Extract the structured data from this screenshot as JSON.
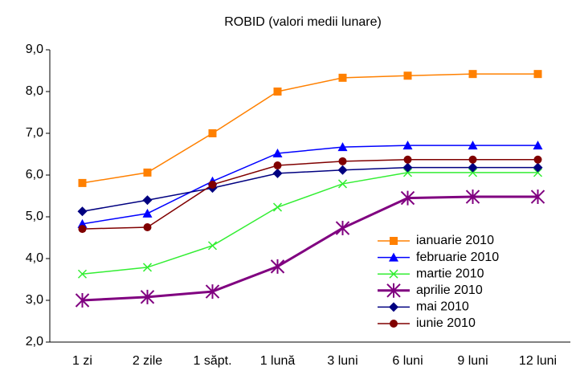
{
  "chart_data": {
    "type": "line",
    "title": "ROBID (valori medii lunare)",
    "categories": [
      "1 zi",
      "2 zile",
      "1 săpt.",
      "1 lună",
      "3 luni",
      "6 luni",
      "9 luni",
      "12 luni"
    ],
    "ylim": [
      2,
      9
    ],
    "yticks": [
      {
        "value": 2,
        "label": "2,0"
      },
      {
        "value": 3,
        "label": "3,0"
      },
      {
        "value": 4,
        "label": "4,0"
      },
      {
        "value": 5,
        "label": "5,0"
      },
      {
        "value": 6,
        "label": "6,0"
      },
      {
        "value": 7,
        "label": "7,0"
      },
      {
        "value": 8,
        "label": "8,0"
      },
      {
        "value": 9,
        "label": "9,0"
      }
    ],
    "grid": false,
    "legend": "lower right",
    "series": [
      {
        "name": "ianuarie 2010",
        "color": "#ff8000",
        "marker": "square",
        "values": [
          5.81,
          6.06,
          7.0,
          8.0,
          8.33,
          8.38,
          8.42,
          8.42
        ]
      },
      {
        "name": "februarie 2010",
        "color": "#0000ff",
        "marker": "triangle",
        "values": [
          4.83,
          5.08,
          5.85,
          6.52,
          6.67,
          6.71,
          6.71,
          6.71
        ]
      },
      {
        "name": "martie 2010",
        "color": "#33ee33",
        "marker": "x",
        "values": [
          3.63,
          3.79,
          4.31,
          5.23,
          5.79,
          6.06,
          6.06,
          6.06
        ]
      },
      {
        "name": "aprilie 2010",
        "color": "#800080",
        "marker": "asterisk",
        "line_width": 3,
        "values": [
          3.0,
          3.08,
          3.21,
          3.81,
          4.73,
          5.45,
          5.48,
          5.48
        ]
      },
      {
        "name": "mai 2010",
        "color": "#000080",
        "marker": "diamond",
        "values": [
          5.13,
          5.4,
          5.69,
          6.04,
          6.12,
          6.18,
          6.18,
          6.18
        ]
      },
      {
        "name": "iunie 2010",
        "color": "#800000",
        "marker": "circle",
        "values": [
          4.71,
          4.75,
          5.77,
          6.23,
          6.33,
          6.37,
          6.37,
          6.37
        ]
      }
    ]
  }
}
